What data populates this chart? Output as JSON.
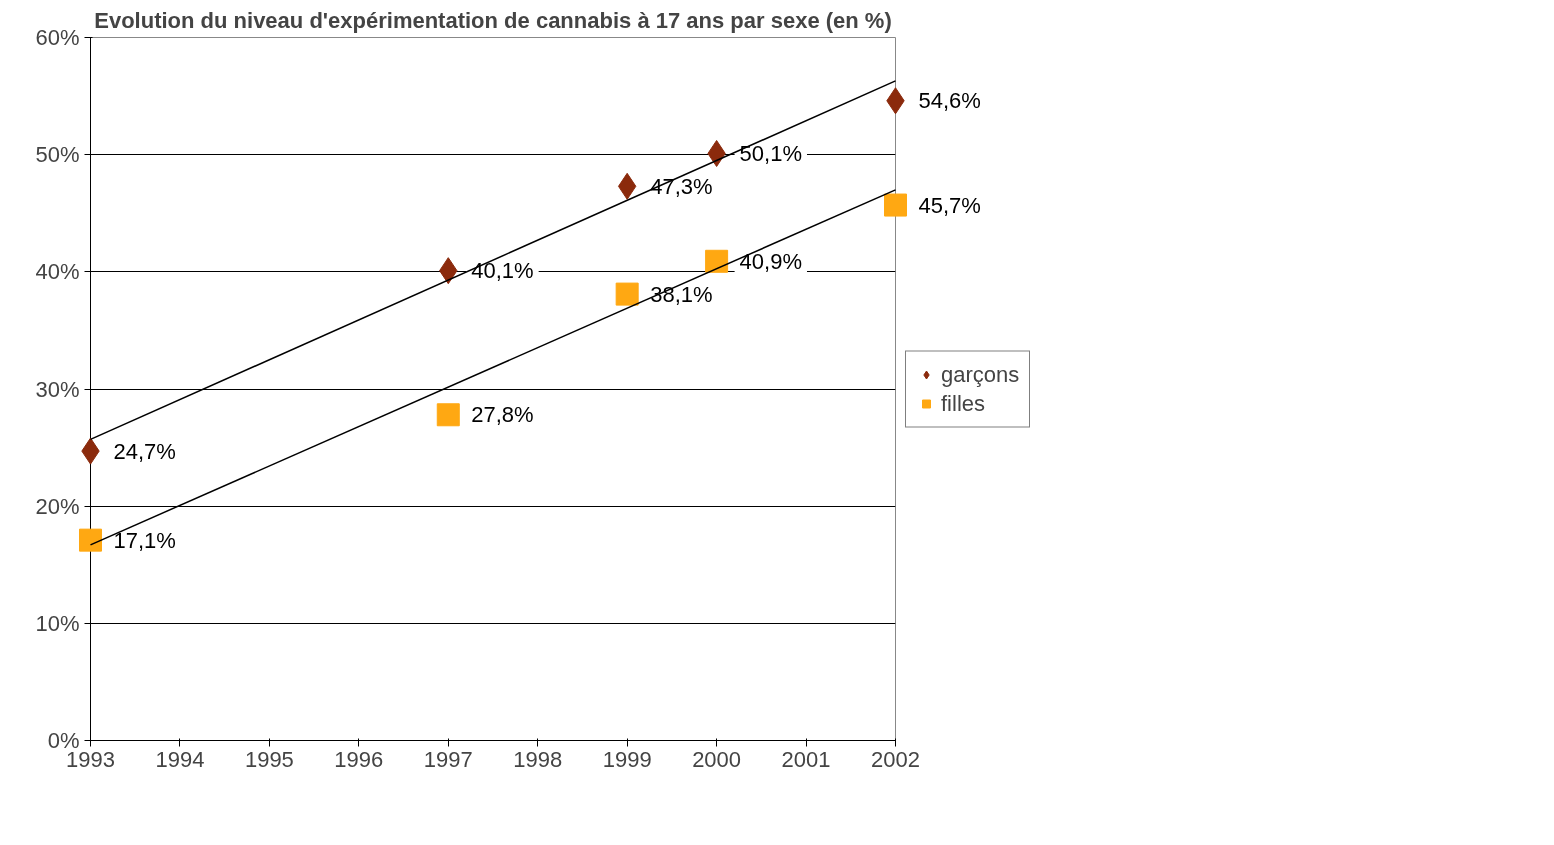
{
  "chart_data": {
    "type": "scatter",
    "title": "Evolution du niveau d'expérimentation de cannabis à 17 ans par sexe (en %)",
    "xlim": [
      1993,
      2002
    ],
    "xticks": [
      1993,
      1994,
      1995,
      1996,
      1997,
      1998,
      1999,
      2000,
      2001,
      2002
    ],
    "ylim": [
      0,
      60
    ],
    "yticks": [
      {
        "value": 0,
        "label": "0%"
      },
      {
        "value": 10,
        "label": "10%"
      },
      {
        "value": 20,
        "label": "20%"
      },
      {
        "value": 30,
        "label": "30%"
      },
      {
        "value": 40,
        "label": "40%"
      },
      {
        "value": 50,
        "label": "50%"
      },
      {
        "value": 60,
        "label": "60%"
      }
    ],
    "grid": "y",
    "legend": "right",
    "series": [
      {
        "name": "garçons",
        "marker": "diamond",
        "color": "#8b2a0c",
        "x": [
          1993,
          1997,
          1999,
          2000,
          2002
        ],
        "values": [
          24.7,
          40.1,
          47.3,
          50.1,
          54.6
        ],
        "value_labels": [
          "24,7%",
          "40,1%",
          "47,3%",
          "50,1%",
          "54,6%"
        ]
      },
      {
        "name": "filles",
        "marker": "square",
        "color": "#ffa812",
        "x": [
          1993,
          1997,
          1999,
          2000,
          2002
        ],
        "values": [
          17.1,
          27.8,
          38.1,
          40.9,
          45.7
        ],
        "value_labels": [
          "17,1%",
          "27,8%",
          "38,1%",
          "40,9%",
          "45,7%"
        ]
      },
      {
        "type": "line",
        "color": "#000000",
        "x": [
          1993,
          2002
        ],
        "values": [
          25.7,
          56.3
        ]
      },
      {
        "type": "line",
        "color": "#000000",
        "x": [
          1993,
          2002
        ],
        "values": [
          16.7,
          47.0
        ]
      }
    ]
  }
}
